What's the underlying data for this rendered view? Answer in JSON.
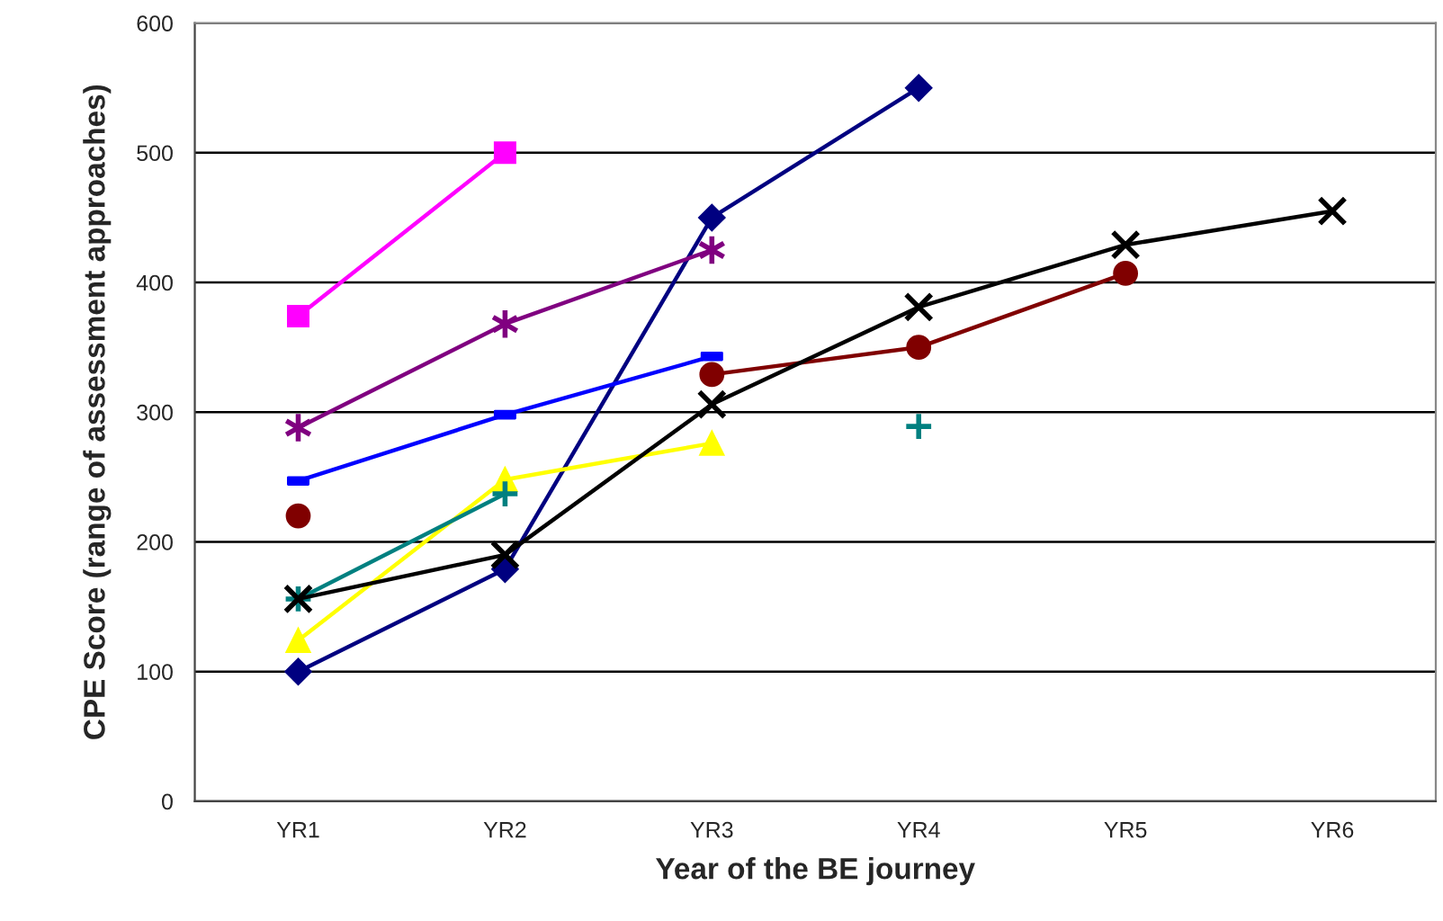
{
  "chart_data": {
    "type": "line",
    "xlabel": "Year of the BE journey",
    "ylabel": "CPE Score (range of assessment approaches)",
    "categories": [
      "YR1",
      "YR2",
      "YR3",
      "YR4",
      "YR5",
      "YR6"
    ],
    "ylim": [
      0,
      600
    ],
    "yticks": [
      0,
      100,
      200,
      300,
      400,
      500,
      600
    ],
    "grid": "y",
    "series": [
      {
        "color": "#000080",
        "marker": "diamond",
        "values": [
          100,
          179,
          450,
          550,
          null,
          null
        ]
      },
      {
        "color": "#ff00ff",
        "marker": "square_large",
        "values": [
          374,
          500,
          null,
          null,
          null,
          null
        ]
      },
      {
        "color": "#800080",
        "marker": "cross",
        "values": [
          288,
          368,
          425,
          null,
          null,
          null
        ]
      },
      {
        "color": "#0000ff",
        "marker": "square",
        "values": [
          247,
          298,
          343,
          null,
          null,
          null
        ]
      },
      {
        "color": "#800000",
        "marker": "circle",
        "values": [
          220,
          null,
          329,
          350,
          407,
          null
        ]
      },
      {
        "color": "#ffff00",
        "marker": "triangle",
        "values": [
          124,
          248,
          276,
          null,
          null,
          null
        ]
      },
      {
        "color": "#008080",
        "marker": "plus",
        "values": [
          156,
          237,
          null,
          289,
          null,
          null
        ]
      },
      {
        "color": "#000000",
        "marker": "x",
        "values": [
          156,
          190,
          306,
          381,
          429,
          455
        ]
      }
    ]
  }
}
